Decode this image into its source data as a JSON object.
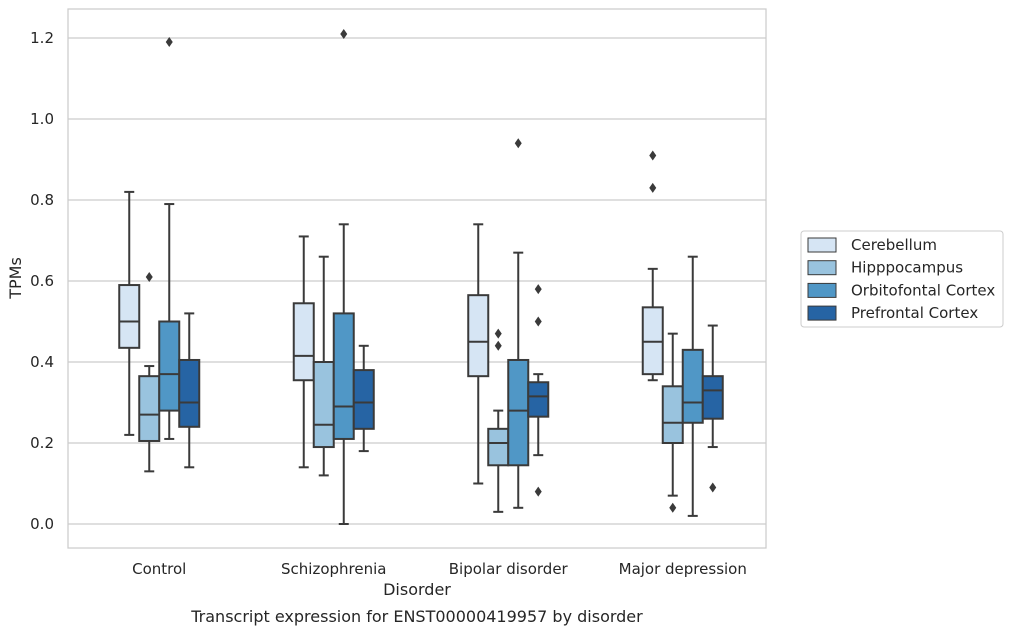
{
  "chart_data": {
    "type": "box",
    "title": "Transcript expression for ENST00000419957 by disorder",
    "xlabel": "Disorder",
    "ylabel": "TPMs",
    "ylim": [
      -0.06,
      1.27
    ],
    "yticks": [
      "0.0",
      "0.2",
      "0.4",
      "0.6",
      "0.8",
      "1.0",
      "1.2"
    ],
    "grid": true,
    "legend_position": "right",
    "categories": [
      "Control",
      "Schizophrenia",
      "Bipolar disorder",
      "Major depression"
    ],
    "series": [
      {
        "name": "Cerebellum",
        "color": "#d6e5f4",
        "boxes": [
          {
            "whisker_low": 0.22,
            "q1": 0.435,
            "median": 0.5,
            "q3": 0.59,
            "whisker_high": 0.82,
            "outliers": []
          },
          {
            "whisker_low": 0.14,
            "q1": 0.355,
            "median": 0.415,
            "q3": 0.545,
            "whisker_high": 0.71,
            "outliers": []
          },
          {
            "whisker_low": 0.1,
            "q1": 0.365,
            "median": 0.45,
            "q3": 0.565,
            "whisker_high": 0.74,
            "outliers": []
          },
          {
            "whisker_low": 0.355,
            "q1": 0.37,
            "median": 0.45,
            "q3": 0.535,
            "whisker_high": 0.63,
            "outliers": [
              0.83,
              0.91
            ]
          }
        ]
      },
      {
        "name": "Hipppocampus",
        "color": "#99c3de",
        "boxes": [
          {
            "whisker_low": 0.13,
            "q1": 0.205,
            "median": 0.27,
            "q3": 0.365,
            "whisker_high": 0.39,
            "outliers": [
              0.61
            ]
          },
          {
            "whisker_low": 0.12,
            "q1": 0.19,
            "median": 0.245,
            "q3": 0.4,
            "whisker_high": 0.66,
            "outliers": []
          },
          {
            "whisker_low": 0.03,
            "q1": 0.145,
            "median": 0.2,
            "q3": 0.235,
            "whisker_high": 0.28,
            "outliers": [
              0.44,
              0.47
            ]
          },
          {
            "whisker_low": 0.07,
            "q1": 0.2,
            "median": 0.25,
            "q3": 0.34,
            "whisker_high": 0.47,
            "outliers": [
              0.04
            ]
          }
        ]
      },
      {
        "name": "Orbitofontal Cortex",
        "color": "#5097c6",
        "boxes": [
          {
            "whisker_low": 0.21,
            "q1": 0.28,
            "median": 0.37,
            "q3": 0.5,
            "whisker_high": 0.79,
            "outliers": [
              1.19
            ]
          },
          {
            "whisker_low": 0.0,
            "q1": 0.21,
            "median": 0.29,
            "q3": 0.52,
            "whisker_high": 0.74,
            "outliers": [
              1.21
            ]
          },
          {
            "whisker_low": 0.04,
            "q1": 0.145,
            "median": 0.28,
            "q3": 0.405,
            "whisker_high": 0.67,
            "outliers": [
              0.94
            ]
          },
          {
            "whisker_low": 0.02,
            "q1": 0.25,
            "median": 0.3,
            "q3": 0.43,
            "whisker_high": 0.66,
            "outliers": []
          }
        ]
      },
      {
        "name": "Prefrontal Cortex",
        "color": "#2664a4",
        "boxes": [
          {
            "whisker_low": 0.14,
            "q1": 0.24,
            "median": 0.3,
            "q3": 0.405,
            "whisker_high": 0.52,
            "outliers": []
          },
          {
            "whisker_low": 0.18,
            "q1": 0.235,
            "median": 0.3,
            "q3": 0.38,
            "whisker_high": 0.44,
            "outliers": []
          },
          {
            "whisker_low": 0.17,
            "q1": 0.265,
            "median": 0.315,
            "q3": 0.35,
            "whisker_high": 0.37,
            "outliers": [
              0.08,
              0.5,
              0.58
            ]
          },
          {
            "whisker_low": 0.19,
            "q1": 0.26,
            "median": 0.33,
            "q3": 0.365,
            "whisker_high": 0.49,
            "outliers": [
              0.09
            ]
          }
        ]
      }
    ]
  }
}
